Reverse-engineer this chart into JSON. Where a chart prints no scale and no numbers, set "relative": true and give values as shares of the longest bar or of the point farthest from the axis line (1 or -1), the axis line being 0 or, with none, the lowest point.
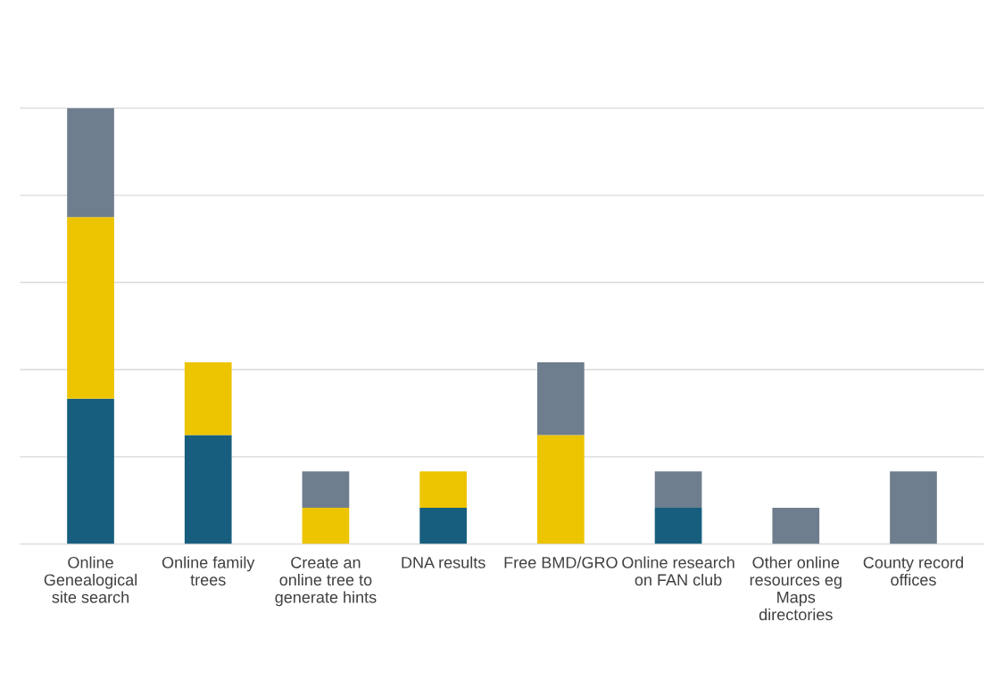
{
  "chart_data": {
    "type": "bar",
    "stacked": true,
    "relative": true,
    "grid": "y",
    "legend": false,
    "categories": [
      "Online Genealogical site search",
      "Online family trees",
      "Create an online tree to generate hints",
      "DNA results",
      "Free BMD/GRO",
      "Online research on FAN club",
      "Other online resources eg Maps directories",
      "County record offices"
    ],
    "series": [
      {
        "color": "#175e7e",
        "values": [
          0.3333,
          0.25,
          0,
          0.0833,
          0,
          0.0833,
          0,
          0
        ]
      },
      {
        "color": "#edc400",
        "values": [
          0.4167,
          0.1667,
          0.0833,
          0.0833,
          0.25,
          0,
          0,
          0
        ]
      },
      {
        "color": "#6e7e8e",
        "values": [
          0.25,
          0,
          0.0833,
          0,
          0.1667,
          0.0833,
          0.0833,
          0.1667
        ]
      }
    ]
  }
}
